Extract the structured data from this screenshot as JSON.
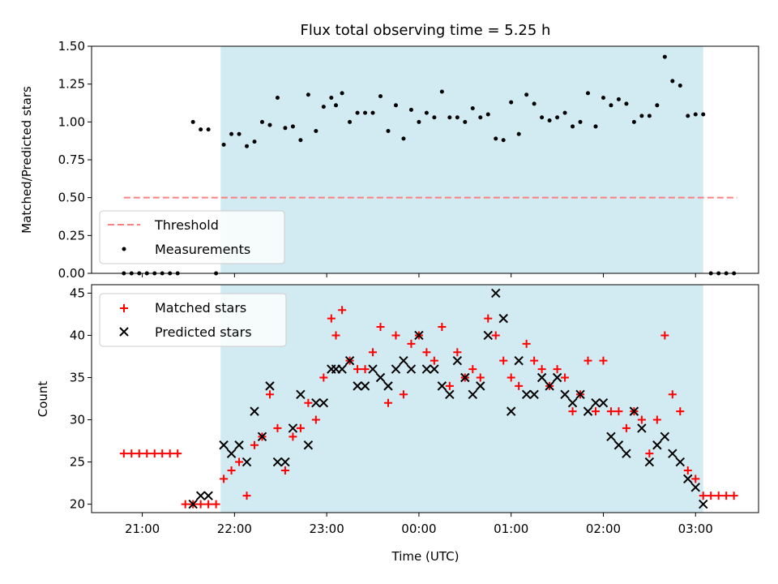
{
  "chart_data": [
    {
      "type": "scatter",
      "title": "Flux total observing time = 5.25 h",
      "xlabel": "",
      "ylabel": "Matched/Predicted stars",
      "ylim": [
        0,
        1.5
      ],
      "yticks": [
        "0.00",
        "0.25",
        "0.50",
        "0.75",
        "1.00",
        "1.25",
        "1.50"
      ],
      "shaded_span": [
        "21:51",
        "03:05"
      ],
      "shaded_color": "#add8e6",
      "threshold": {
        "name": "Threshold",
        "value": 0.5,
        "x_start": "20:48",
        "x_end": "03:27",
        "color": "#ff7f7f",
        "style": "dashed"
      },
      "legend": {
        "placement": "lower-left",
        "entries": [
          "Threshold",
          "Measurements"
        ]
      },
      "series": [
        {
          "name": "Measurements",
          "marker": "dot",
          "color": "#000000",
          "points": [
            [
              "20:48",
              0
            ],
            [
              "20:53",
              0
            ],
            [
              "20:58",
              0
            ],
            [
              "21:03",
              0
            ],
            [
              "21:08",
              0
            ],
            [
              "21:13",
              0
            ],
            [
              "21:18",
              0
            ],
            [
              "21:23",
              0
            ],
            [
              "21:33",
              1.0
            ],
            [
              "21:38",
              0.95
            ],
            [
              "21:43",
              0.95
            ],
            [
              "21:48",
              0
            ],
            [
              "21:53",
              0.85
            ],
            [
              "21:58",
              0.92
            ],
            [
              "22:03",
              0.92
            ],
            [
              "22:08",
              0.84
            ],
            [
              "22:13",
              0.87
            ],
            [
              "22:18",
              1.0
            ],
            [
              "22:23",
              0.98
            ],
            [
              "22:28",
              1.16
            ],
            [
              "22:33",
              0.96
            ],
            [
              "22:38",
              0.97
            ],
            [
              "22:43",
              0.88
            ],
            [
              "22:48",
              1.18
            ],
            [
              "22:53",
              0.94
            ],
            [
              "22:58",
              1.1
            ],
            [
              "23:03",
              1.16
            ],
            [
              "23:06",
              1.11
            ],
            [
              "23:10",
              1.19
            ],
            [
              "23:15",
              1.0
            ],
            [
              "23:20",
              1.06
            ],
            [
              "23:25",
              1.06
            ],
            [
              "23:30",
              1.06
            ],
            [
              "23:35",
              1.17
            ],
            [
              "23:40",
              0.94
            ],
            [
              "23:45",
              1.11
            ],
            [
              "23:50",
              0.89
            ],
            [
              "23:55",
              1.08
            ],
            [
              "00:00",
              1.0
            ],
            [
              "00:05",
              1.06
            ],
            [
              "00:10",
              1.03
            ],
            [
              "00:15",
              1.2
            ],
            [
              "00:20",
              1.03
            ],
            [
              "00:25",
              1.03
            ],
            [
              "00:30",
              1.0
            ],
            [
              "00:35",
              1.09
            ],
            [
              "00:40",
              1.03
            ],
            [
              "00:45",
              1.05
            ],
            [
              "00:50",
              0.89
            ],
            [
              "00:55",
              0.88
            ],
            [
              "01:00",
              1.13
            ],
            [
              "01:05",
              0.92
            ],
            [
              "01:10",
              1.18
            ],
            [
              "01:15",
              1.12
            ],
            [
              "01:20",
              1.03
            ],
            [
              "01:25",
              1.01
            ],
            [
              "01:30",
              1.03
            ],
            [
              "01:35",
              1.06
            ],
            [
              "01:40",
              0.97
            ],
            [
              "01:45",
              1.0
            ],
            [
              "01:50",
              1.19
            ],
            [
              "01:55",
              0.97
            ],
            [
              "02:00",
              1.16
            ],
            [
              "02:05",
              1.11
            ],
            [
              "02:10",
              1.15
            ],
            [
              "02:15",
              1.12
            ],
            [
              "02:20",
              1.0
            ],
            [
              "02:25",
              1.04
            ],
            [
              "02:30",
              1.04
            ],
            [
              "02:35",
              1.11
            ],
            [
              "02:40",
              1.43
            ],
            [
              "02:45",
              1.27
            ],
            [
              "02:50",
              1.24
            ],
            [
              "02:55",
              1.04
            ],
            [
              "03:00",
              1.05
            ],
            [
              "03:05",
              1.05
            ],
            [
              "03:10",
              0
            ],
            [
              "03:15",
              0
            ],
            [
              "03:20",
              0
            ],
            [
              "03:25",
              0
            ]
          ]
        }
      ]
    },
    {
      "type": "scatter",
      "title": "",
      "xlabel": "Time (UTC)",
      "ylabel": "Count",
      "ylim": [
        19,
        46
      ],
      "yticks": [
        "20",
        "25",
        "30",
        "35",
        "40",
        "45"
      ],
      "xticks": [
        "21:00",
        "22:00",
        "23:00",
        "00:00",
        "01:00",
        "02:00",
        "03:00"
      ],
      "xlim": [
        "20:27",
        "03:41"
      ],
      "shaded_span": [
        "21:51",
        "03:05"
      ],
      "legend": {
        "placement": "top-left",
        "entries": [
          "Matched stars",
          "Predicted stars"
        ]
      },
      "series": [
        {
          "name": "Matched stars",
          "marker": "plus",
          "color": "#ff0000",
          "points": [
            [
              "20:48",
              26
            ],
            [
              "20:53",
              26
            ],
            [
              "20:58",
              26
            ],
            [
              "21:03",
              26
            ],
            [
              "21:08",
              26
            ],
            [
              "21:13",
              26
            ],
            [
              "21:18",
              26
            ],
            [
              "21:23",
              26
            ],
            [
              "21:28",
              20
            ],
            [
              "21:33",
              20
            ],
            [
              "21:38",
              20
            ],
            [
              "21:43",
              20
            ],
            [
              "21:48",
              20
            ],
            [
              "21:53",
              23
            ],
            [
              "21:58",
              24
            ],
            [
              "22:03",
              25
            ],
            [
              "22:08",
              21
            ],
            [
              "22:13",
              27
            ],
            [
              "22:18",
              28
            ],
            [
              "22:23",
              33
            ],
            [
              "22:28",
              29
            ],
            [
              "22:33",
              24
            ],
            [
              "22:38",
              28
            ],
            [
              "22:43",
              29
            ],
            [
              "22:48",
              32
            ],
            [
              "22:53",
              30
            ],
            [
              "22:58",
              35
            ],
            [
              "23:03",
              42
            ],
            [
              "23:06",
              40
            ],
            [
              "23:10",
              43
            ],
            [
              "23:15",
              37
            ],
            [
              "23:20",
              36
            ],
            [
              "23:25",
              36
            ],
            [
              "23:30",
              38
            ],
            [
              "23:35",
              41
            ],
            [
              "23:40",
              32
            ],
            [
              "23:45",
              40
            ],
            [
              "23:50",
              33
            ],
            [
              "23:55",
              39
            ],
            [
              "00:00",
              40
            ],
            [
              "00:05",
              38
            ],
            [
              "00:10",
              37
            ],
            [
              "00:15",
              41
            ],
            [
              "00:20",
              34
            ],
            [
              "00:25",
              38
            ],
            [
              "00:30",
              35
            ],
            [
              "00:35",
              36
            ],
            [
              "00:40",
              35
            ],
            [
              "00:45",
              42
            ],
            [
              "00:50",
              40
            ],
            [
              "00:55",
              37
            ],
            [
              "01:00",
              35
            ],
            [
              "01:05",
              34
            ],
            [
              "01:10",
              39
            ],
            [
              "01:15",
              37
            ],
            [
              "01:20",
              36
            ],
            [
              "01:25",
              34
            ],
            [
              "01:30",
              36
            ],
            [
              "01:35",
              35
            ],
            [
              "01:40",
              31
            ],
            [
              "01:45",
              33
            ],
            [
              "01:50",
              37
            ],
            [
              "01:55",
              31
            ],
            [
              "02:00",
              37
            ],
            [
              "02:05",
              31
            ],
            [
              "02:10",
              31
            ],
            [
              "02:15",
              29
            ],
            [
              "02:20",
              31
            ],
            [
              "02:25",
              30
            ],
            [
              "02:30",
              26
            ],
            [
              "02:35",
              30
            ],
            [
              "02:40",
              40
            ],
            [
              "02:45",
              33
            ],
            [
              "02:50",
              31
            ],
            [
              "02:55",
              24
            ],
            [
              "03:00",
              23
            ],
            [
              "03:05",
              21
            ],
            [
              "03:10",
              21
            ],
            [
              "03:15",
              21
            ],
            [
              "03:20",
              21
            ],
            [
              "03:25",
              21
            ]
          ]
        },
        {
          "name": "Predicted stars",
          "marker": "x",
          "color": "#000000",
          "points": [
            [
              "21:33",
              20
            ],
            [
              "21:38",
              21
            ],
            [
              "21:43",
              21
            ],
            [
              "21:53",
              27
            ],
            [
              "21:58",
              26
            ],
            [
              "22:03",
              27
            ],
            [
              "22:08",
              25
            ],
            [
              "22:13",
              31
            ],
            [
              "22:18",
              28
            ],
            [
              "22:23",
              34
            ],
            [
              "22:28",
              25
            ],
            [
              "22:33",
              25
            ],
            [
              "22:38",
              29
            ],
            [
              "22:43",
              33
            ],
            [
              "22:48",
              27
            ],
            [
              "22:53",
              32
            ],
            [
              "22:58",
              32
            ],
            [
              "23:03",
              36
            ],
            [
              "23:06",
              36
            ],
            [
              "23:10",
              36
            ],
            [
              "23:15",
              37
            ],
            [
              "23:20",
              34
            ],
            [
              "23:25",
              34
            ],
            [
              "23:30",
              36
            ],
            [
              "23:35",
              35
            ],
            [
              "23:40",
              34
            ],
            [
              "23:45",
              36
            ],
            [
              "23:50",
              37
            ],
            [
              "23:55",
              36
            ],
            [
              "00:00",
              40
            ],
            [
              "00:05",
              36
            ],
            [
              "00:10",
              36
            ],
            [
              "00:15",
              34
            ],
            [
              "00:20",
              33
            ],
            [
              "00:25",
              37
            ],
            [
              "00:30",
              35
            ],
            [
              "00:35",
              33
            ],
            [
              "00:40",
              34
            ],
            [
              "00:45",
              40
            ],
            [
              "00:50",
              45
            ],
            [
              "00:55",
              42
            ],
            [
              "01:00",
              31
            ],
            [
              "01:05",
              37
            ],
            [
              "01:10",
              33
            ],
            [
              "01:15",
              33
            ],
            [
              "01:20",
              35
            ],
            [
              "01:25",
              34
            ],
            [
              "01:30",
              35
            ],
            [
              "01:35",
              33
            ],
            [
              "01:40",
              32
            ],
            [
              "01:45",
              33
            ],
            [
              "01:50",
              31
            ],
            [
              "01:55",
              32
            ],
            [
              "02:00",
              32
            ],
            [
              "02:05",
              28
            ],
            [
              "02:10",
              27
            ],
            [
              "02:15",
              26
            ],
            [
              "02:20",
              31
            ],
            [
              "02:25",
              29
            ],
            [
              "02:30",
              25
            ],
            [
              "02:35",
              27
            ],
            [
              "02:40",
              28
            ],
            [
              "02:45",
              26
            ],
            [
              "02:50",
              25
            ],
            [
              "02:55",
              23
            ],
            [
              "03:00",
              22
            ],
            [
              "03:05",
              20
            ]
          ]
        }
      ]
    }
  ]
}
